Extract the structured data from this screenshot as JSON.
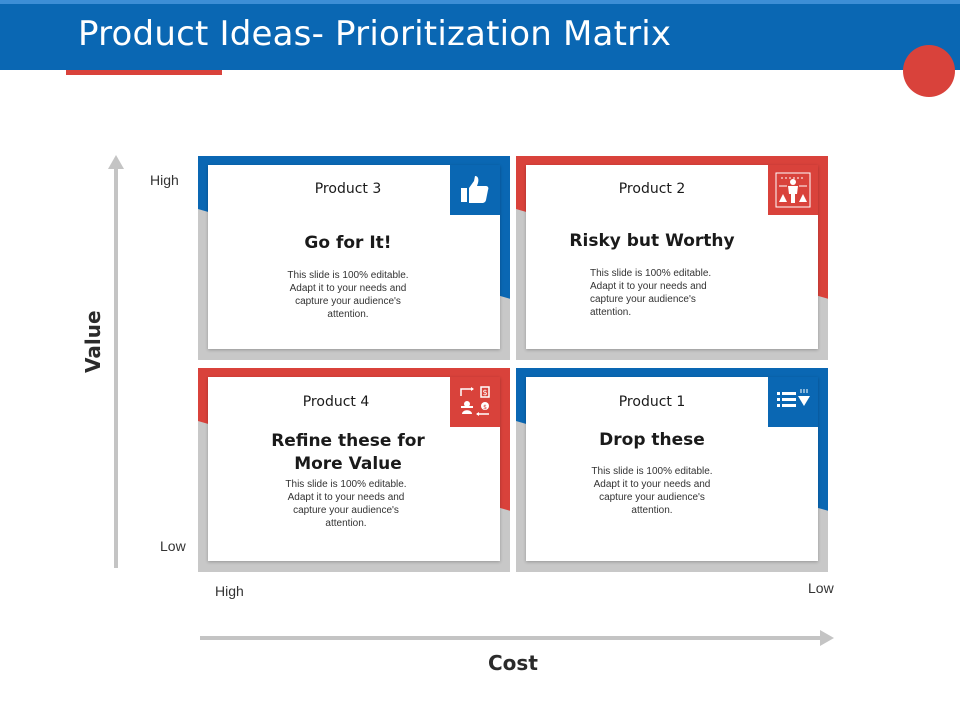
{
  "header": {
    "title": "Product Ideas- Prioritization Matrix",
    "bar_color": "#0a67b3",
    "accent_color": "#d9423b"
  },
  "axes": {
    "y_title": "Value",
    "x_title": "Cost",
    "y_high": "High",
    "y_low": "Low",
    "x_high": "High",
    "x_low": "Low"
  },
  "quadrants": {
    "top_left": {
      "product": "Product 3",
      "heading": "Go for It!",
      "body": "This slide is 100% editable. Adapt it to your needs and capture your audience's attention.",
      "icon": "thumbs-up-icon",
      "color": "#0a67b3"
    },
    "top_right": {
      "product": "Product 2",
      "heading": "Risky but Worthy",
      "body": "This slide is 100% editable. Adapt it to your needs and capture your audience's attention.",
      "icon": "person-risk-icon",
      "color": "#d9423b"
    },
    "bottom_left": {
      "product": "Product 4",
      "heading": "Refine these for More Value",
      "body": "This slide is 100% editable. Adapt it to your needs and capture your audience's attention.",
      "icon": "person-money-cycle-icon",
      "color": "#d9423b"
    },
    "bottom_right": {
      "product": "Product 1",
      "heading": "Drop these",
      "body": "This slide is 100% editable. Adapt it to your needs and capture your audience's attention.",
      "icon": "list-down-arrow-icon",
      "color": "#0a67b3"
    }
  }
}
